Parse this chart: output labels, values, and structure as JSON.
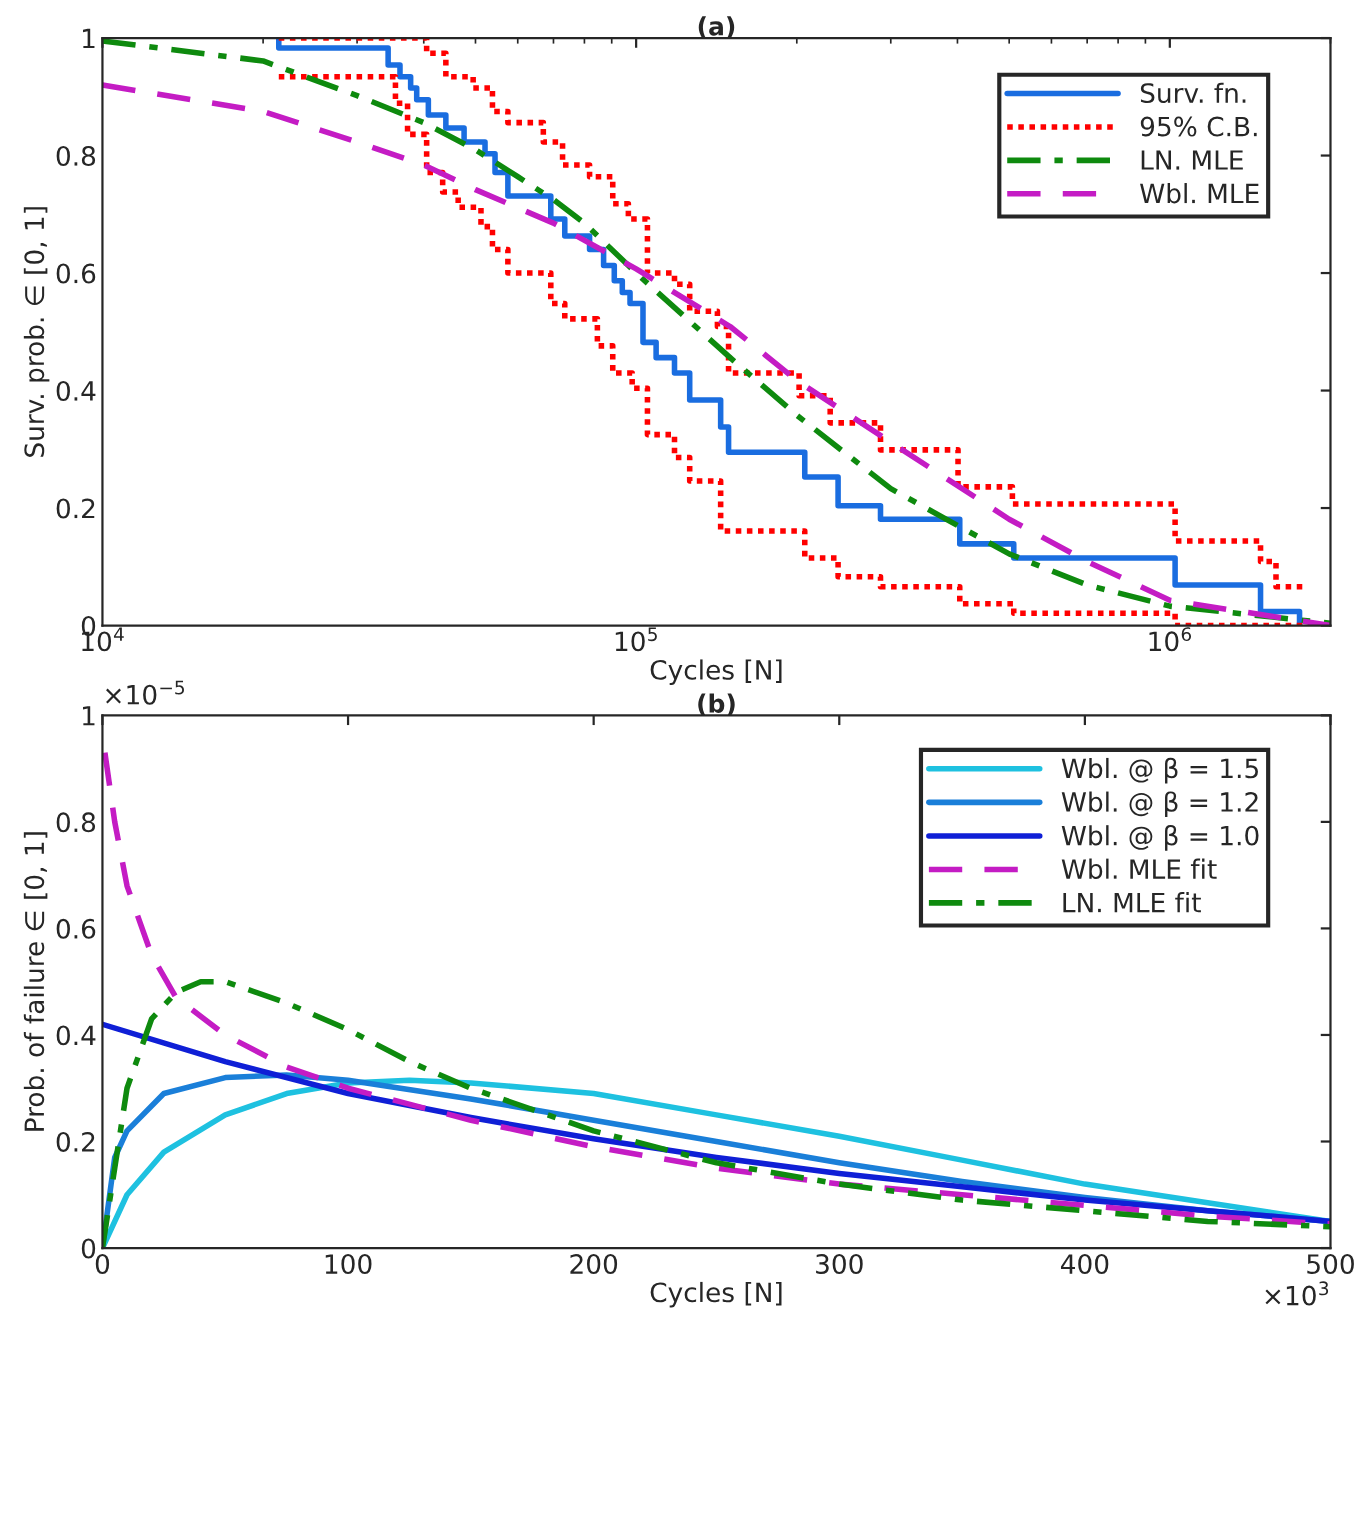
{
  "chart_data": [
    {
      "type": "line",
      "title": "(a)",
      "xlabel": "Cycles [N]",
      "ylabel": "Surv. prob. ∈ [0, 1]",
      "log": "x",
      "xlim": [
        10000,
        2000000
      ],
      "ylim": [
        0,
        1
      ],
      "xticks": [
        {
          "value": 10000,
          "label": "10$^{4}$"
        },
        {
          "value": 100000,
          "label": "10$^{5}$"
        },
        {
          "value": 1000000,
          "label": "10$^{6}$"
        }
      ],
      "yticks": [
        0,
        {
          "value": 0.2,
          "label": "0.2"
        },
        {
          "value": 0.4,
          "label": "0.4"
        },
        {
          "value": 0.6,
          "label": "0.6"
        },
        {
          "value": 0.8,
          "label": "0.8"
        },
        1
      ],
      "legend": "top right",
      "grid": false,
      "series": [
        {
          "name": "Surv. fn.",
          "type": "step",
          "color": "#1a6de0",
          "line_style": "solid",
          "x": [
            21400,
            21400,
            34300,
            36100,
            37800,
            38800,
            40800,
            44000,
            47600,
            52100,
            54400,
            57500,
            69200,
            73500,
            81800,
            86900,
            91000,
            94200,
            97400,
            103000,
            109000,
            118000,
            126000,
            144000,
            149000,
            207000,
            239000,
            287000,
            404000,
            510000,
            1023000,
            1479000,
            1750000
          ],
          "values": [
            1,
            0.983,
            0.954,
            0.934,
            0.915,
            0.895,
            0.869,
            0.847,
            0.823,
            0.803,
            0.771,
            0.731,
            0.692,
            0.663,
            0.64,
            0.613,
            0.587,
            0.567,
            0.548,
            0.482,
            0.456,
            0.43,
            0.384,
            0.338,
            0.295,
            0.253,
            0.204,
            0.181,
            0.139,
            0.115,
            0.069,
            0.024,
            0
          ]
        },
        {
          "name": "95% C.B.",
          "type": "step",
          "color": "#ff0000",
          "line_style": "dotted",
          "x": [
            21400,
            40500,
            44000,
            49500,
            53800,
            57500,
            67000,
            72800,
            81800,
            90400,
            96700,
            105000,
            118000,
            126000,
            142000,
            149000,
            202000,
            231000,
            287000,
            401000,
            507000,
            1023000,
            1479000,
            1581000,
            1750000,
            1800000
          ],
          "values": [
            1,
            0.974,
            0.934,
            0.915,
            0.875,
            0.856,
            0.823,
            0.784,
            0.764,
            0.718,
            0.692,
            0.6,
            0.581,
            0.535,
            0.509,
            0.43,
            0.391,
            0.345,
            0.299,
            0.236,
            0.207,
            0.144,
            0.109,
            0.066,
            0.066,
            0.066
          ]
        },
        {
          "type": "step",
          "color": "#ff0000",
          "line_style": "dotted",
          "x": [
            21400,
            34300,
            35400,
            37300,
            40500,
            43400,
            46400,
            51200,
            53800,
            57500,
            69200,
            73500,
            84600,
            90400,
            98300,
            105000,
            118000,
            126000,
            144000,
            207000,
            239000,
            287000,
            404000,
            510000,
            1023000,
            2000000
          ],
          "values": [
            0.934,
            0.934,
            0.889,
            0.836,
            0.771,
            0.738,
            0.712,
            0.679,
            0.64,
            0.6,
            0.548,
            0.522,
            0.476,
            0.43,
            0.404,
            0.325,
            0.286,
            0.246,
            0.161,
            0.115,
            0.083,
            0.066,
            0.037,
            0.021,
            0,
            0
          ]
        },
        {
          "name": "LN. MLE",
          "color": "#0e8a0e",
          "line_style": "dashdot",
          "x": [
            10000,
            20000,
            30000,
            40000,
            50000,
            60000,
            70000,
            80000,
            100000,
            150000,
            200000,
            300000,
            500000,
            700000,
            1000000,
            2000000
          ],
          "values": [
            0.995,
            0.961,
            0.902,
            0.856,
            0.81,
            0.764,
            0.725,
            0.685,
            0.6,
            0.456,
            0.358,
            0.233,
            0.122,
            0.069,
            0.033,
            0.004
          ]
        },
        {
          "name": "Wbl. MLE",
          "color": "#c41cc4",
          "line_style": "dashed",
          "x": [
            10000,
            20000,
            30000,
            40000,
            50000,
            70000,
            100000,
            150000,
            200000,
            300000,
            500000,
            700000,
            1000000,
            2000000
          ],
          "values": [
            0.92,
            0.875,
            0.823,
            0.784,
            0.742,
            0.685,
            0.607,
            0.509,
            0.417,
            0.312,
            0.181,
            0.109,
            0.043,
            0
          ]
        }
      ]
    },
    {
      "type": "line",
      "title": "(b)",
      "xlabel": "Cycles [N]",
      "ylabel": "Prob. of failure ∈ [0, 1]",
      "xlim": [
        0,
        500
      ],
      "ylim": [
        0,
        1
      ],
      "xticks": [
        0,
        100,
        200,
        300,
        400,
        500
      ],
      "yticks": [
        0,
        {
          "value": 0.2,
          "label": "0.2"
        },
        {
          "value": 0.4,
          "label": "0.4"
        },
        {
          "value": 0.6,
          "label": "0.6"
        },
        {
          "value": 0.8,
          "label": "0.8"
        },
        1
      ],
      "annotations": [
        "×10$^{−5}$",
        "×10$^{3}$"
      ],
      "legend": "top right",
      "grid": false,
      "series": [
        {
          "name": "Wbl. @ β = 1.5",
          "color": "#1ec1e0",
          "line_style": "solid",
          "x": [
            0,
            10,
            25,
            50,
            75,
            100,
            125,
            150,
            200,
            250,
            300,
            350,
            400,
            450,
            500
          ],
          "values": [
            0,
            0.1,
            0.18,
            0.25,
            0.29,
            0.31,
            0.315,
            0.31,
            0.29,
            0.25,
            0.21,
            0.165,
            0.12,
            0.085,
            0.05
          ]
        },
        {
          "name": "Wbl. @ β = 1.2",
          "color": "#1a7fd9",
          "line_style": "solid",
          "x": [
            0,
            5,
            10,
            25,
            50,
            75,
            100,
            150,
            200,
            250,
            300,
            350,
            400,
            450,
            500
          ],
          "values": [
            0,
            0.17,
            0.22,
            0.29,
            0.32,
            0.325,
            0.315,
            0.28,
            0.24,
            0.2,
            0.16,
            0.125,
            0.095,
            0.07,
            0.05
          ]
        },
        {
          "name": "Wbl. @ β = 1.0",
          "color": "#0f1fd6",
          "line_style": "solid",
          "x": [
            0,
            50,
            100,
            150,
            200,
            250,
            300,
            350,
            400,
            450,
            500
          ],
          "values": [
            0.42,
            0.35,
            0.29,
            0.245,
            0.205,
            0.17,
            0.14,
            0.115,
            0.09,
            0.07,
            0.05
          ]
        },
        {
          "name": "Wbl. MLE fit",
          "color": "#c41cc4",
          "line_style": "dashed",
          "x": [
            1,
            5,
            10,
            20,
            30,
            50,
            75,
            100,
            150,
            200,
            250,
            300,
            350,
            400,
            450,
            500
          ],
          "values": [
            0.93,
            0.8,
            0.68,
            0.55,
            0.47,
            0.4,
            0.34,
            0.3,
            0.24,
            0.19,
            0.15,
            0.12,
            0.1,
            0.08,
            0.06,
            0.045
          ]
        },
        {
          "name": "LN. MLE fit",
          "color": "#0e8a0e",
          "line_style": "dashdot",
          "x": [
            0,
            5,
            10,
            20,
            30,
            40,
            50,
            75,
            100,
            125,
            150,
            200,
            250,
            300,
            350,
            400,
            450,
            500
          ],
          "values": [
            0,
            0.15,
            0.3,
            0.43,
            0.48,
            0.5,
            0.5,
            0.46,
            0.41,
            0.35,
            0.3,
            0.22,
            0.16,
            0.12,
            0.09,
            0.07,
            0.05,
            0.04
          ]
        }
      ]
    }
  ]
}
